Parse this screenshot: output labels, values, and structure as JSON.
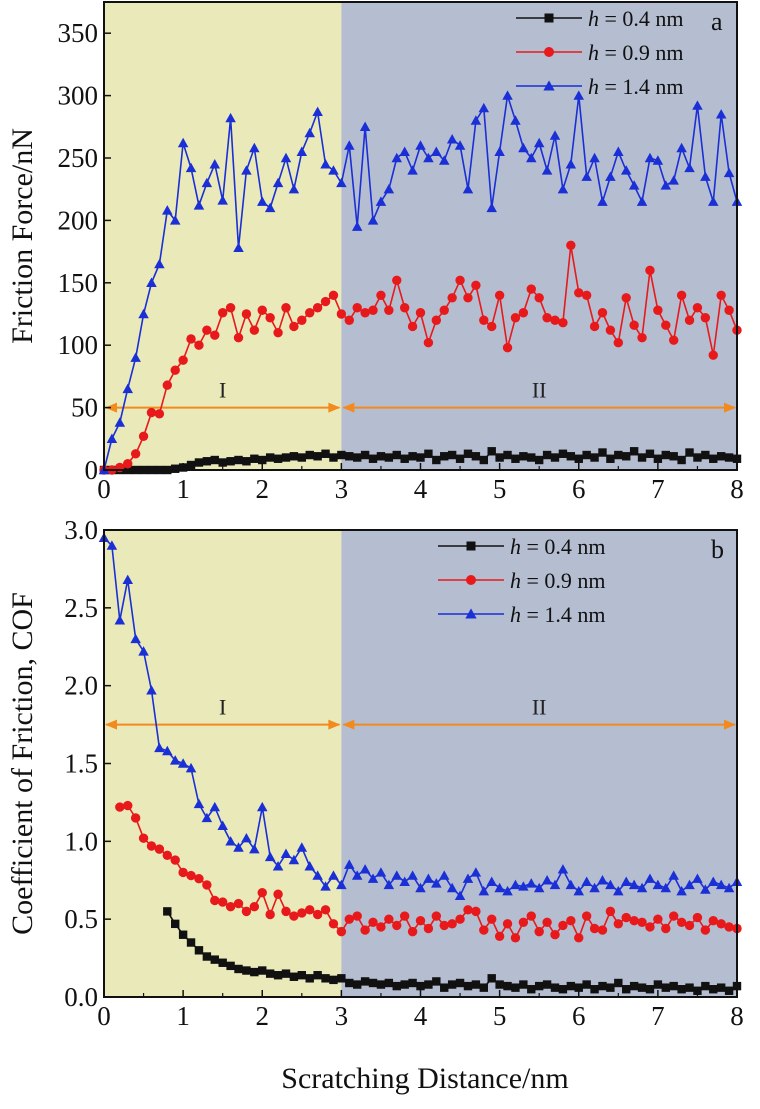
{
  "colors": {
    "region_I": "#e9e9b9",
    "region_II": "#b5bdd1",
    "arrow": "#f28a1e",
    "axis": "#111111",
    "series": [
      "#111111",
      "#e8191b",
      "#1a2fd6"
    ]
  },
  "x_title": "Scratching Distance/nm",
  "chart_data": [
    {
      "type": "line",
      "panel_label": "a",
      "ylabel": "Friction Force/nN",
      "xlim": [
        0,
        8
      ],
      "ylim": [
        0,
        375
      ],
      "xticks": [
        0,
        1,
        2,
        3,
        4,
        5,
        6,
        7,
        8
      ],
      "yticks": [
        0,
        50,
        100,
        150,
        200,
        250,
        300,
        350
      ],
      "ytick_labels": [
        "0",
        "50",
        "100",
        "150",
        "200",
        "250",
        "300",
        "350"
      ],
      "regions": [
        {
          "label": "I",
          "x_range": [
            0,
            3
          ]
        },
        {
          "label": "II",
          "x_range": [
            3,
            8
          ]
        }
      ],
      "region_arrow_y": 50,
      "legend_position": "top-right",
      "series": [
        {
          "legend_prefix": "h",
          "legend_rest": " = 0.4 nm",
          "marker": "square",
          "x": [
            0,
            0.1,
            0.2,
            0.3,
            0.4,
            0.5,
            0.6,
            0.7,
            0.8,
            0.9,
            1.0,
            1.1,
            1.2,
            1.3,
            1.4,
            1.5,
            1.6,
            1.7,
            1.8,
            1.9,
            2.0,
            2.1,
            2.2,
            2.3,
            2.4,
            2.5,
            2.6,
            2.7,
            2.8,
            2.9,
            3.0,
            3.1,
            3.2,
            3.3,
            3.4,
            3.5,
            3.6,
            3.7,
            3.8,
            3.9,
            4.0,
            4.1,
            4.2,
            4.3,
            4.4,
            4.5,
            4.6,
            4.7,
            4.8,
            4.9,
            5.0,
            5.1,
            5.2,
            5.3,
            5.4,
            5.5,
            5.6,
            5.7,
            5.8,
            5.9,
            6.0,
            6.1,
            6.2,
            6.3,
            6.4,
            6.5,
            6.6,
            6.7,
            6.8,
            6.9,
            7.0,
            7.1,
            7.2,
            7.3,
            7.4,
            7.5,
            7.6,
            7.7,
            7.8,
            7.9,
            8.0
          ],
          "y": [
            0,
            0,
            0,
            0,
            0,
            0,
            0,
            0,
            0,
            1,
            2,
            4,
            6,
            7,
            8,
            6,
            7,
            8,
            7,
            9,
            8,
            10,
            9,
            10,
            11,
            10,
            12,
            11,
            13,
            10,
            12,
            11,
            10,
            12,
            9,
            11,
            10,
            12,
            9,
            11,
            10,
            13,
            8,
            11,
            12,
            9,
            13,
            11,
            8,
            15,
            10,
            12,
            9,
            11,
            10,
            8,
            12,
            10,
            13,
            11,
            9,
            12,
            10,
            14,
            9,
            12,
            11,
            15,
            10,
            13,
            9,
            12,
            11,
            8,
            14,
            10,
            12,
            9,
            11,
            10,
            9
          ]
        },
        {
          "legend_prefix": "h",
          "legend_rest": " = 0.9 nm",
          "marker": "circle",
          "x": [
            0,
            0.1,
            0.2,
            0.3,
            0.4,
            0.5,
            0.6,
            0.7,
            0.8,
            0.9,
            1.0,
            1.1,
            1.2,
            1.3,
            1.4,
            1.5,
            1.6,
            1.7,
            1.8,
            1.9,
            2.0,
            2.1,
            2.2,
            2.3,
            2.4,
            2.5,
            2.6,
            2.7,
            2.8,
            2.9,
            3.0,
            3.1,
            3.2,
            3.3,
            3.4,
            3.5,
            3.6,
            3.7,
            3.8,
            3.9,
            4.0,
            4.1,
            4.2,
            4.3,
            4.4,
            4.5,
            4.6,
            4.7,
            4.8,
            4.9,
            5.0,
            5.1,
            5.2,
            5.3,
            5.4,
            5.5,
            5.6,
            5.7,
            5.8,
            5.9,
            6.0,
            6.1,
            6.2,
            6.3,
            6.4,
            6.5,
            6.6,
            6.7,
            6.8,
            6.9,
            7.0,
            7.1,
            7.2,
            7.3,
            7.4,
            7.5,
            7.6,
            7.7,
            7.8,
            7.9,
            8.0
          ],
          "y": [
            0,
            0,
            2,
            5,
            13,
            27,
            46,
            45,
            68,
            80,
            88,
            105,
            100,
            112,
            108,
            126,
            130,
            106,
            125,
            112,
            128,
            122,
            110,
            130,
            115,
            120,
            126,
            130,
            135,
            140,
            125,
            120,
            130,
            126,
            128,
            140,
            128,
            152,
            130,
            115,
            126,
            102,
            120,
            128,
            138,
            152,
            138,
            148,
            120,
            115,
            140,
            98,
            122,
            126,
            145,
            138,
            122,
            120,
            118,
            180,
            142,
            140,
            115,
            126,
            112,
            102,
            138,
            116,
            106,
            160,
            128,
            116,
            104,
            140,
            120,
            130,
            122,
            92,
            140,
            128,
            112
          ]
        },
        {
          "legend_prefix": "h",
          "legend_rest": " = 1.4 nm",
          "marker": "triangle",
          "x": [
            0,
            0.1,
            0.2,
            0.3,
            0.4,
            0.5,
            0.6,
            0.7,
            0.8,
            0.9,
            1.0,
            1.1,
            1.2,
            1.3,
            1.4,
            1.5,
            1.6,
            1.7,
            1.8,
            1.9,
            2.0,
            2.1,
            2.2,
            2.3,
            2.4,
            2.5,
            2.6,
            2.7,
            2.8,
            2.9,
            3.0,
            3.1,
            3.2,
            3.3,
            3.4,
            3.5,
            3.6,
            3.7,
            3.8,
            3.9,
            4.0,
            4.1,
            4.2,
            4.3,
            4.4,
            4.5,
            4.6,
            4.7,
            4.8,
            4.9,
            5.0,
            5.1,
            5.2,
            5.3,
            5.4,
            5.5,
            5.6,
            5.7,
            5.8,
            5.9,
            6.0,
            6.1,
            6.2,
            6.3,
            6.4,
            6.5,
            6.6,
            6.7,
            6.8,
            6.9,
            7.0,
            7.1,
            7.2,
            7.3,
            7.4,
            7.5,
            7.6,
            7.7,
            7.8,
            7.9,
            8.0
          ],
          "y": [
            0,
            25,
            38,
            65,
            90,
            125,
            150,
            165,
            208,
            200,
            262,
            242,
            212,
            230,
            245,
            216,
            282,
            178,
            240,
            258,
            215,
            210,
            230,
            250,
            225,
            255,
            270,
            287,
            245,
            240,
            230,
            260,
            195,
            275,
            200,
            215,
            225,
            250,
            255,
            240,
            260,
            250,
            255,
            248,
            265,
            260,
            225,
            280,
            290,
            210,
            255,
            300,
            280,
            258,
            250,
            262,
            240,
            268,
            225,
            245,
            300,
            235,
            250,
            215,
            235,
            255,
            240,
            228,
            215,
            250,
            248,
            228,
            232,
            258,
            242,
            292,
            235,
            215,
            285,
            238,
            215
          ]
        }
      ]
    },
    {
      "type": "line",
      "panel_label": "b",
      "ylabel": "Coefficient of Friction, COF",
      "xlabel": "Scratching Distance/nm",
      "xlim": [
        0,
        8
      ],
      "ylim": [
        0,
        3.0
      ],
      "xticks": [
        0,
        1,
        2,
        3,
        4,
        5,
        6,
        7,
        8
      ],
      "yticks": [
        0,
        0.5,
        1.0,
        1.5,
        2.0,
        2.5,
        3.0
      ],
      "ytick_labels": [
        "0.0",
        "0.5",
        "1.0",
        "1.5",
        "2.0",
        "2.5",
        "3.0"
      ],
      "regions": [
        {
          "label": "I",
          "x_range": [
            0,
            3
          ]
        },
        {
          "label": "II",
          "x_range": [
            3,
            8
          ]
        }
      ],
      "region_arrow_y": 1.75,
      "legend_position": "top-right",
      "series": [
        {
          "legend_prefix": "h",
          "legend_rest": " = 0.4 nm",
          "marker": "square",
          "x": [
            0.8,
            0.9,
            1.0,
            1.1,
            1.2,
            1.3,
            1.4,
            1.5,
            1.6,
            1.7,
            1.8,
            1.9,
            2.0,
            2.1,
            2.2,
            2.3,
            2.4,
            2.5,
            2.6,
            2.7,
            2.8,
            2.9,
            3.0,
            3.1,
            3.2,
            3.3,
            3.4,
            3.5,
            3.6,
            3.7,
            3.8,
            3.9,
            4.0,
            4.1,
            4.2,
            4.3,
            4.4,
            4.5,
            4.6,
            4.7,
            4.8,
            4.9,
            5.0,
            5.1,
            5.2,
            5.3,
            5.4,
            5.5,
            5.6,
            5.7,
            5.8,
            5.9,
            6.0,
            6.1,
            6.2,
            6.3,
            6.4,
            6.5,
            6.6,
            6.7,
            6.8,
            6.9,
            7.0,
            7.1,
            7.2,
            7.3,
            7.4,
            7.5,
            7.6,
            7.7,
            7.8,
            7.9,
            8.0
          ],
          "y": [
            0.55,
            0.47,
            0.4,
            0.35,
            0.3,
            0.26,
            0.24,
            0.22,
            0.2,
            0.18,
            0.17,
            0.16,
            0.17,
            0.15,
            0.14,
            0.15,
            0.13,
            0.14,
            0.12,
            0.14,
            0.12,
            0.11,
            0.12,
            0.09,
            0.08,
            0.1,
            0.09,
            0.08,
            0.09,
            0.07,
            0.08,
            0.09,
            0.07,
            0.08,
            0.1,
            0.06,
            0.08,
            0.09,
            0.07,
            0.08,
            0.06,
            0.12,
            0.08,
            0.07,
            0.06,
            0.08,
            0.05,
            0.07,
            0.08,
            0.06,
            0.05,
            0.07,
            0.06,
            0.08,
            0.05,
            0.07,
            0.06,
            0.09,
            0.05,
            0.07,
            0.06,
            0.05,
            0.08,
            0.06,
            0.07,
            0.05,
            0.06,
            0.04,
            0.07,
            0.05,
            0.06,
            0.04,
            0.07
          ]
        },
        {
          "legend_prefix": "h",
          "legend_rest": " = 0.9 nm",
          "marker": "circle",
          "x": [
            0.2,
            0.3,
            0.4,
            0.5,
            0.6,
            0.7,
            0.8,
            0.9,
            1.0,
            1.1,
            1.2,
            1.3,
            1.4,
            1.5,
            1.6,
            1.7,
            1.8,
            1.9,
            2.0,
            2.1,
            2.2,
            2.3,
            2.4,
            2.5,
            2.6,
            2.7,
            2.8,
            2.9,
            3.0,
            3.1,
            3.2,
            3.3,
            3.4,
            3.5,
            3.6,
            3.7,
            3.8,
            3.9,
            4.0,
            4.1,
            4.2,
            4.3,
            4.4,
            4.5,
            4.6,
            4.7,
            4.8,
            4.9,
            5.0,
            5.1,
            5.2,
            5.3,
            5.4,
            5.5,
            5.6,
            5.7,
            5.8,
            5.9,
            6.0,
            6.1,
            6.2,
            6.3,
            6.4,
            6.5,
            6.6,
            6.7,
            6.8,
            6.9,
            7.0,
            7.1,
            7.2,
            7.3,
            7.4,
            7.5,
            7.6,
            7.7,
            7.8,
            7.9,
            8.0
          ],
          "y": [
            1.22,
            1.23,
            1.15,
            1.02,
            0.97,
            0.95,
            0.91,
            0.88,
            0.8,
            0.78,
            0.76,
            0.72,
            0.62,
            0.61,
            0.58,
            0.6,
            0.55,
            0.58,
            0.67,
            0.53,
            0.66,
            0.55,
            0.52,
            0.54,
            0.56,
            0.53,
            0.56,
            0.47,
            0.42,
            0.5,
            0.52,
            0.43,
            0.48,
            0.45,
            0.5,
            0.46,
            0.52,
            0.42,
            0.49,
            0.44,
            0.52,
            0.46,
            0.47,
            0.5,
            0.56,
            0.55,
            0.43,
            0.5,
            0.39,
            0.47,
            0.38,
            0.48,
            0.52,
            0.42,
            0.48,
            0.4,
            0.46,
            0.49,
            0.38,
            0.52,
            0.44,
            0.43,
            0.55,
            0.47,
            0.51,
            0.49,
            0.48,
            0.45,
            0.5,
            0.44,
            0.52,
            0.48,
            0.46,
            0.51,
            0.43,
            0.49,
            0.47,
            0.45,
            0.44
          ]
        },
        {
          "legend_prefix": "h",
          "legend_rest": " = 1.4 nm",
          "marker": "triangle",
          "x": [
            0,
            0.1,
            0.2,
            0.3,
            0.4,
            0.5,
            0.6,
            0.7,
            0.8,
            0.9,
            1.0,
            1.1,
            1.2,
            1.3,
            1.4,
            1.5,
            1.6,
            1.7,
            1.8,
            1.9,
            2.0,
            2.1,
            2.2,
            2.3,
            2.4,
            2.5,
            2.6,
            2.7,
            2.8,
            2.9,
            3.0,
            3.1,
            3.2,
            3.3,
            3.4,
            3.5,
            3.6,
            3.7,
            3.8,
            3.9,
            4.0,
            4.1,
            4.2,
            4.3,
            4.4,
            4.5,
            4.6,
            4.7,
            4.8,
            4.9,
            5.0,
            5.1,
            5.2,
            5.3,
            5.4,
            5.5,
            5.6,
            5.7,
            5.8,
            5.9,
            6.0,
            6.1,
            6.2,
            6.3,
            6.4,
            6.5,
            6.6,
            6.7,
            6.8,
            6.9,
            7.0,
            7.1,
            7.2,
            7.3,
            7.4,
            7.5,
            7.6,
            7.7,
            7.8,
            7.9,
            8.0
          ],
          "y": [
            2.95,
            2.9,
            2.42,
            2.68,
            2.3,
            2.22,
            1.97,
            1.6,
            1.58,
            1.52,
            1.5,
            1.47,
            1.24,
            1.15,
            1.22,
            1.1,
            1.0,
            0.96,
            1.02,
            0.95,
            1.22,
            0.9,
            0.84,
            0.92,
            0.88,
            0.96,
            0.84,
            0.78,
            0.71,
            0.78,
            0.72,
            0.85,
            0.78,
            0.82,
            0.76,
            0.8,
            0.72,
            0.78,
            0.74,
            0.78,
            0.7,
            0.76,
            0.73,
            0.78,
            0.7,
            0.65,
            0.76,
            0.8,
            0.68,
            0.74,
            0.7,
            0.68,
            0.72,
            0.71,
            0.73,
            0.7,
            0.75,
            0.72,
            0.82,
            0.72,
            0.68,
            0.74,
            0.7,
            0.75,
            0.72,
            0.68,
            0.74,
            0.72,
            0.7,
            0.76,
            0.72,
            0.7,
            0.78,
            0.68,
            0.72,
            0.76,
            0.69,
            0.74,
            0.72,
            0.7,
            0.74
          ]
        }
      ]
    }
  ]
}
